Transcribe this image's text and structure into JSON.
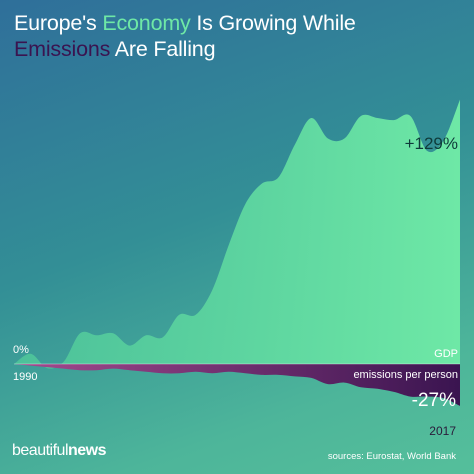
{
  "title": {
    "part1": "Europe's ",
    "highlight1": "Economy",
    "part2": " Is Growing While",
    "highlight2": "Emissions",
    "part3": " Are Falling"
  },
  "colors": {
    "gdp_fill": "#6ee8a6",
    "emissions_start": "#a44a8e",
    "emissions_end": "#3a1450",
    "title_green": "#6ee8a6",
    "title_purple": "#3a1450"
  },
  "chart_data": {
    "type": "area",
    "x": [
      1990,
      1991,
      1992,
      1993,
      1994,
      1995,
      1996,
      1997,
      1998,
      1999,
      2000,
      2001,
      2002,
      2003,
      2004,
      2005,
      2006,
      2007,
      2008,
      2009,
      2010,
      2011,
      2012,
      2013,
      2014,
      2015,
      2016,
      2017
    ],
    "series": [
      {
        "name": "GDP",
        "values": [
          0,
          5,
          -2,
          1,
          15,
          14,
          15,
          9,
          14,
          13,
          24,
          24,
          36,
          58,
          78,
          88,
          91,
          107,
          120,
          110,
          110,
          121,
          120,
          119,
          121,
          104,
          109,
          129
        ],
        "end_label": "+129%"
      },
      {
        "name": "emissions per person",
        "values": [
          0,
          -1,
          -2,
          -3,
          -4,
          -4,
          -3,
          -4,
          -5,
          -6,
          -6,
          -5,
          -6,
          -5,
          -6,
          -7,
          -7,
          -8,
          -9,
          -13,
          -12,
          -15,
          -16,
          -18,
          -21,
          -21,
          -22,
          -27
        ],
        "end_label": "-27%"
      }
    ],
    "x_start_label": "1990",
    "x_end_label": "2017",
    "zero_label": "0%"
  },
  "sources": "sources: Eurostat, World Bank",
  "brand": {
    "light": "beautiful",
    "bold": "news"
  }
}
